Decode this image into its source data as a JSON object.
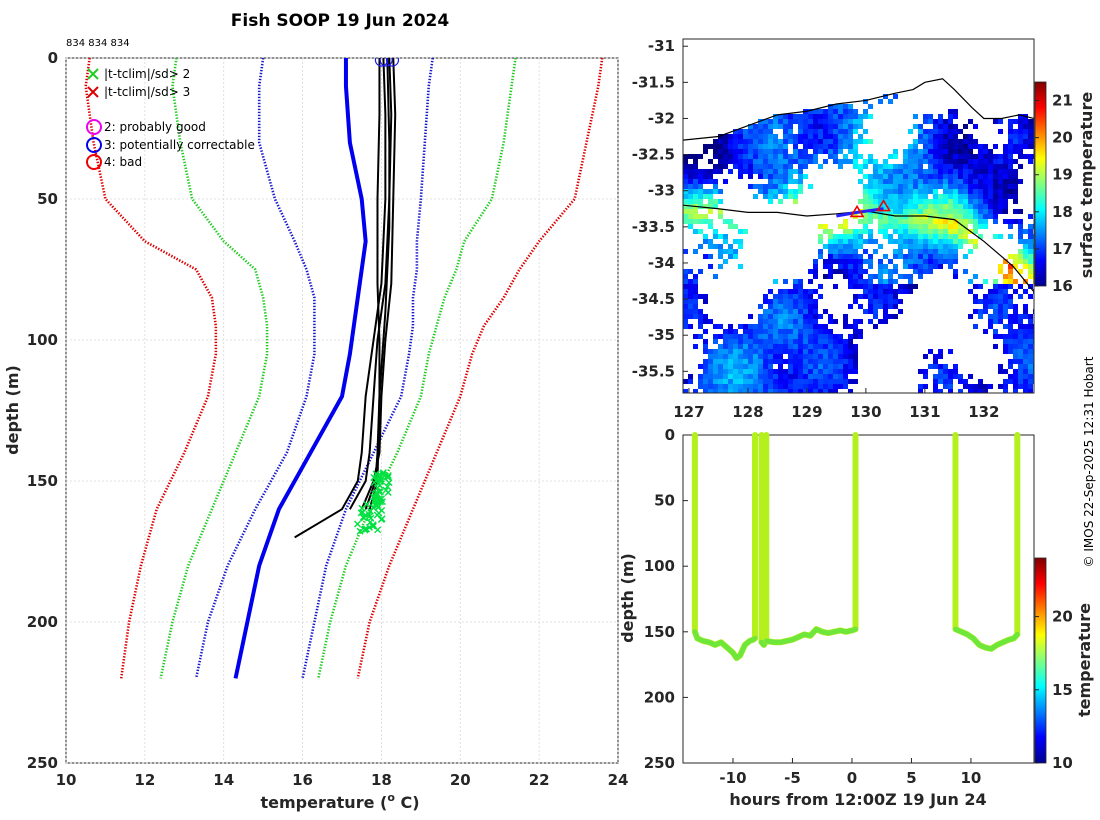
{
  "chart_data": [
    {
      "type": "line",
      "title": "Fish SOOP 19 Jun 2024",
      "annotation": "834 834 834",
      "xlabel": "temperature (",
      "xlabel_sup": "o",
      "xlabel_end": " C)",
      "ylabel": "depth (m)",
      "xlim": [
        10,
        24
      ],
      "ylim": [
        250,
        0
      ],
      "xticks": [
        "10",
        "12",
        "14",
        "16",
        "18",
        "20",
        "22",
        "24"
      ],
      "yticks": [
        "0",
        "50",
        "100",
        "150",
        "200",
        "250"
      ],
      "legend": [
        {
          "label": "|t-tclim|/sd> 2",
          "marker": "x",
          "color": "#22cc22"
        },
        {
          "label": "|t-tclim|/sd> 3",
          "marker": "x",
          "color": "#dd0000"
        },
        {
          "label": "2: probably good",
          "marker": "o",
          "color": "#ee00ee"
        },
        {
          "label": "3: potentially correctable",
          "marker": "o",
          "color": "#0000ee"
        },
        {
          "label": "4: bad",
          "marker": "o",
          "color": "#ee0000"
        }
      ],
      "series": [
        {
          "name": "clim-3sd-low",
          "color": "#dd0000",
          "style": "dotted",
          "depth": [
            0,
            10,
            30,
            50,
            65,
            75,
            85,
            95,
            105,
            120,
            140,
            160,
            180,
            200,
            220
          ],
          "temp": [
            10.6,
            10.5,
            10.7,
            11.0,
            12.0,
            13.3,
            13.7,
            13.8,
            13.8,
            13.6,
            13.0,
            12.3,
            11.9,
            11.6,
            11.4
          ]
        },
        {
          "name": "clim-2sd-low",
          "color": "#22cc22",
          "style": "dotted",
          "depth": [
            0,
            10,
            30,
            50,
            65,
            75,
            85,
            95,
            105,
            120,
            140,
            160,
            180,
            200,
            220
          ],
          "temp": [
            12.8,
            12.7,
            12.9,
            13.2,
            14.0,
            14.8,
            15.0,
            15.1,
            15.1,
            14.9,
            14.3,
            13.7,
            13.1,
            12.7,
            12.4
          ]
        },
        {
          "name": "clim-1sd-low",
          "color": "#1a1acc",
          "style": "dotted",
          "depth": [
            0,
            10,
            30,
            50,
            65,
            75,
            85,
            95,
            105,
            120,
            140,
            160,
            180,
            200,
            220
          ],
          "temp": [
            15.0,
            14.9,
            14.9,
            15.3,
            15.8,
            16.1,
            16.3,
            16.3,
            16.3,
            16.1,
            15.6,
            14.8,
            14.1,
            13.6,
            13.3
          ]
        },
        {
          "name": "clim-mean",
          "color": "#0000ee",
          "style": "solid",
          "depth": [
            0,
            10,
            30,
            50,
            65,
            75,
            85,
            95,
            105,
            120,
            140,
            160,
            180,
            200,
            220
          ],
          "temp": [
            17.1,
            17.1,
            17.2,
            17.5,
            17.6,
            17.5,
            17.4,
            17.3,
            17.2,
            17.0,
            16.2,
            15.4,
            14.9,
            14.6,
            14.3
          ]
        },
        {
          "name": "clim-1sd-high",
          "color": "#1a1acc",
          "style": "dotted",
          "depth": [
            0,
            10,
            30,
            50,
            65,
            75,
            85,
            95,
            105,
            120,
            140,
            160,
            180,
            200,
            220
          ],
          "temp": [
            19.3,
            19.2,
            19.1,
            19.0,
            18.9,
            18.9,
            18.8,
            18.8,
            18.7,
            18.5,
            17.8,
            17.1,
            16.6,
            16.3,
            16.0
          ]
        },
        {
          "name": "clim-2sd-high",
          "color": "#22cc22",
          "style": "dotted",
          "depth": [
            0,
            10,
            30,
            50,
            65,
            75,
            85,
            95,
            105,
            120,
            140,
            160,
            180,
            200,
            220
          ],
          "temp": [
            21.4,
            21.3,
            21.1,
            20.8,
            20.1,
            19.9,
            19.6,
            19.4,
            19.2,
            19.0,
            18.4,
            17.7,
            17.1,
            16.7,
            16.4
          ]
        },
        {
          "name": "clim-3sd-high",
          "color": "#dd0000",
          "style": "dotted",
          "depth": [
            0,
            10,
            30,
            50,
            65,
            75,
            85,
            95,
            105,
            120,
            140,
            160,
            180,
            200,
            220
          ],
          "temp": [
            23.6,
            23.5,
            23.2,
            22.9,
            22.0,
            21.5,
            21.1,
            20.6,
            20.3,
            20.0,
            19.4,
            18.8,
            18.2,
            17.7,
            17.4
          ]
        }
      ],
      "profiles": [
        {
          "depth": [
            0,
            20,
            50,
            80,
            100,
            120,
            140,
            150,
            160,
            165,
            170
          ],
          "temp": [
            18.05,
            18.1,
            18.1,
            18.0,
            17.8,
            17.6,
            17.5,
            17.4,
            17.0,
            16.4,
            15.8
          ]
        },
        {
          "depth": [
            0,
            20,
            50,
            80,
            100,
            120,
            140,
            150,
            160
          ],
          "temp": [
            18.2,
            18.25,
            18.2,
            18.1,
            17.9,
            17.8,
            17.7,
            17.6,
            17.2
          ]
        },
        {
          "depth": [
            0,
            20,
            50,
            80,
            100,
            120,
            140,
            150,
            160
          ],
          "temp": [
            18.3,
            18.35,
            18.3,
            18.25,
            18.1,
            18.0,
            17.95,
            17.8,
            17.5
          ]
        },
        {
          "depth": [
            0,
            20,
            50,
            80,
            100,
            120,
            140,
            150,
            160
          ],
          "temp": [
            17.95,
            17.95,
            17.9,
            17.9,
            17.95,
            17.95,
            17.9,
            17.85,
            17.6
          ]
        },
        {
          "depth": [
            0,
            30,
            60,
            90,
            120,
            150,
            160
          ],
          "temp": [
            18.15,
            18.2,
            18.2,
            18.1,
            17.95,
            17.9,
            17.7
          ]
        }
      ],
      "flagged_depth_range": [
        147,
        168
      ],
      "flagged_temp_range": [
        17.8,
        18.2
      ],
      "top_markers_temp": [
        18.0,
        18.12,
        18.28
      ]
    },
    {
      "type": "heatmap",
      "colorbar_label": "surface temperature",
      "colorbar_ticks": [
        "16",
        "17",
        "18",
        "19",
        "20",
        "21"
      ],
      "clim": [
        16,
        21.5
      ],
      "xlim": [
        126.9,
        132.85
      ],
      "ylim": [
        -35.8,
        -30.9
      ],
      "xticks": [
        "127",
        "128",
        "129",
        "130",
        "131",
        "132"
      ],
      "yticks": [
        "-31",
        "-31.5",
        "-32",
        "-32.5",
        "-33",
        "-33.5",
        "-34",
        "-34.5",
        "-35",
        "-35.5"
      ],
      "coast_lon": [
        126.9,
        127.5,
        128.0,
        128.5,
        129.0,
        129.5,
        130.0,
        130.5,
        130.8,
        131.0,
        131.3,
        131.5,
        131.8,
        132.0,
        132.3,
        132.6,
        132.85
      ],
      "coast_lat": [
        -32.3,
        -32.25,
        -32.1,
        -31.95,
        -31.9,
        -31.8,
        -31.75,
        -31.65,
        -31.6,
        -31.5,
        -31.45,
        -31.6,
        -31.85,
        -32.0,
        -32.0,
        -31.95,
        -32.0
      ],
      "shelf_lon": [
        126.9,
        127.5,
        128.0,
        128.5,
        129.0,
        129.5,
        130.0,
        130.5,
        131.0,
        131.5,
        132.0,
        132.5,
        132.85
      ],
      "shelf_lat": [
        -33.2,
        -33.25,
        -33.3,
        -33.3,
        -33.35,
        -33.32,
        -33.28,
        -33.35,
        -33.35,
        -33.4,
        -33.7,
        -34.05,
        -34.4
      ],
      "track_lon": [
        129.5,
        129.85,
        130.3
      ],
      "track_lat": [
        -33.35,
        -33.3,
        -33.25
      ],
      "track_triangles_lon": [
        129.85,
        130.3
      ],
      "track_triangles_lat": [
        -33.3,
        -33.22
      ]
    },
    {
      "type": "scatter",
      "xlabel": "hours from 12:00Z 19 Jun 24",
      "ylabel": "depth (m)",
      "colorbar_label": "temperature",
      "colorbar_ticks": [
        "10",
        "15",
        "20"
      ],
      "clim": [
        10,
        24
      ],
      "xlim": [
        -14.2,
        15.3
      ],
      "ylim": [
        250,
        0
      ],
      "xticks": [
        "-10",
        "-5",
        "0",
        "5",
        "10"
      ],
      "yticks": [
        "0",
        "50",
        "100",
        "150",
        "200",
        "250"
      ],
      "segments": [
        {
          "x": [
            -13.2,
            -13.2,
            -13.0,
            -12.5,
            -12.0,
            -11.5,
            -11.0,
            -10.5,
            -10.0,
            -9.7,
            -9.4,
            -9.0,
            -8.6,
            -8.3,
            -8.15,
            -8.15
          ],
          "depth": [
            0,
            150,
            155,
            157,
            158,
            160,
            158,
            162,
            166,
            170,
            168,
            160,
            157,
            156,
            155,
            0
          ]
        },
        {
          "x": [
            -7.6,
            -7.6,
            -7.4,
            -7.2,
            -7.2
          ],
          "depth": [
            0,
            158,
            160,
            157,
            0
          ]
        },
        {
          "x": [
            -7.2,
            -6.5,
            -6.0,
            -5.5,
            -5.0,
            -4.5,
            -4.0,
            -3.5,
            -3.0,
            -2.5,
            -2.0,
            -1.5,
            -1.0,
            -0.5,
            0.0,
            0.3,
            0.3
          ],
          "depth": [
            157,
            158,
            158,
            157,
            156,
            154,
            152,
            153,
            148,
            150,
            151,
            150,
            149,
            150,
            149,
            148,
            0
          ]
        },
        {
          "x": [
            8.7,
            8.7,
            9.2,
            9.7,
            10.2,
            10.7,
            11.2,
            11.7,
            12.2,
            12.7,
            13.2,
            13.6,
            13.9,
            13.9
          ],
          "depth": [
            0,
            148,
            150,
            152,
            155,
            160,
            162,
            163,
            160,
            158,
            156,
            155,
            152,
            0
          ]
        }
      ]
    }
  ],
  "credit": "© IMOS 22-Sep-2025 12:31 Hobart"
}
